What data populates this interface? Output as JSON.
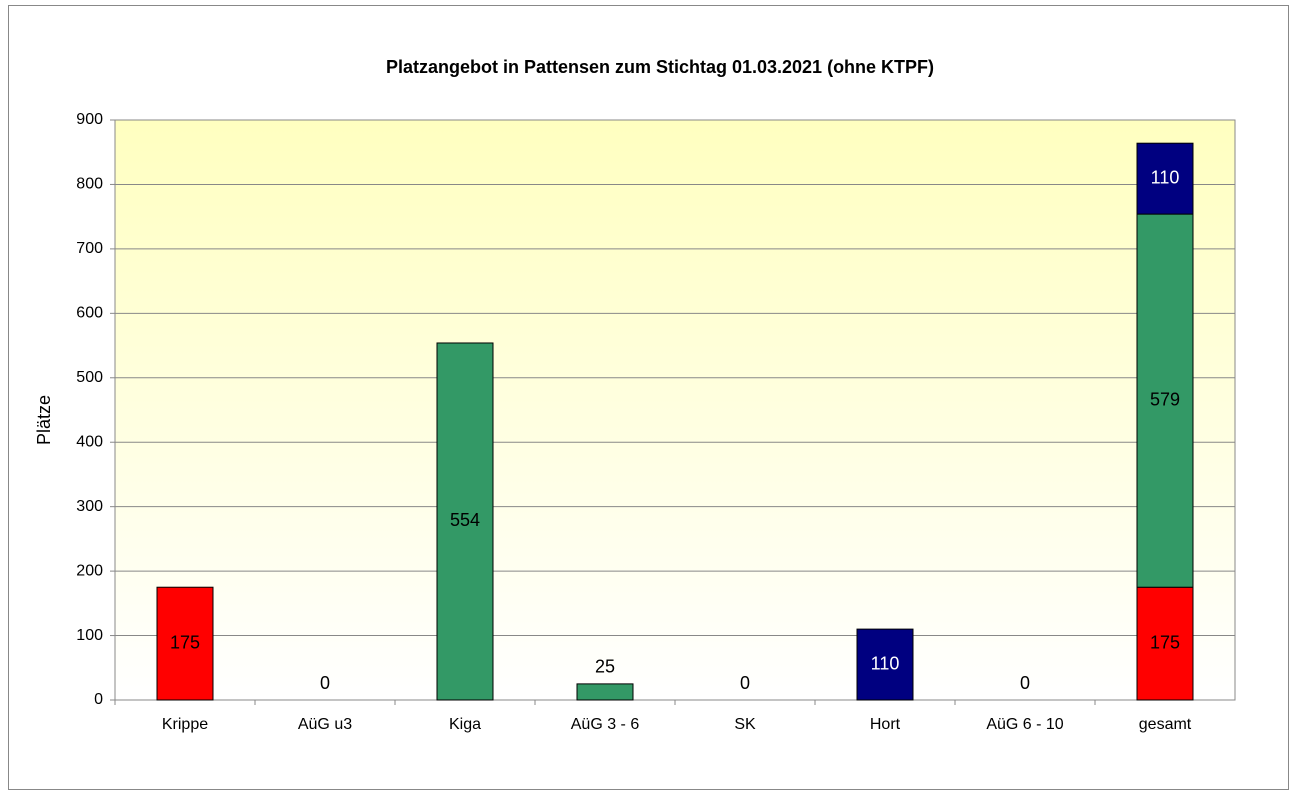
{
  "chart_data": {
    "type": "stacked_bar",
    "title": "Platzangebot in Pattensen zum Stichtag 01.03.2021 (ohne KTPF)",
    "y_label": "Plätze",
    "categories": [
      "Krippe",
      "AüG u3",
      "Kiga",
      "AüG 3 - 6",
      "SK",
      "Hort",
      "AüG 6 - 10",
      "gesamt"
    ],
    "series": [
      {
        "color": "#ff0000",
        "label_color": "#000000",
        "values": [
          175,
          0,
          null,
          null,
          null,
          null,
          null,
          175
        ]
      },
      {
        "color": "#339966",
        "label_color": "#000000",
        "values": [
          null,
          null,
          554,
          25,
          0,
          null,
          null,
          579
        ]
      },
      {
        "color": "#000080",
        "label_color": "#ffffff",
        "values": [
          null,
          null,
          null,
          null,
          null,
          110,
          0,
          110
        ]
      }
    ],
    "ylim": [
      0,
      900
    ],
    "yticks": [
      0,
      100,
      200,
      300,
      400,
      500,
      600,
      700,
      800,
      900
    ],
    "grid": true
  }
}
